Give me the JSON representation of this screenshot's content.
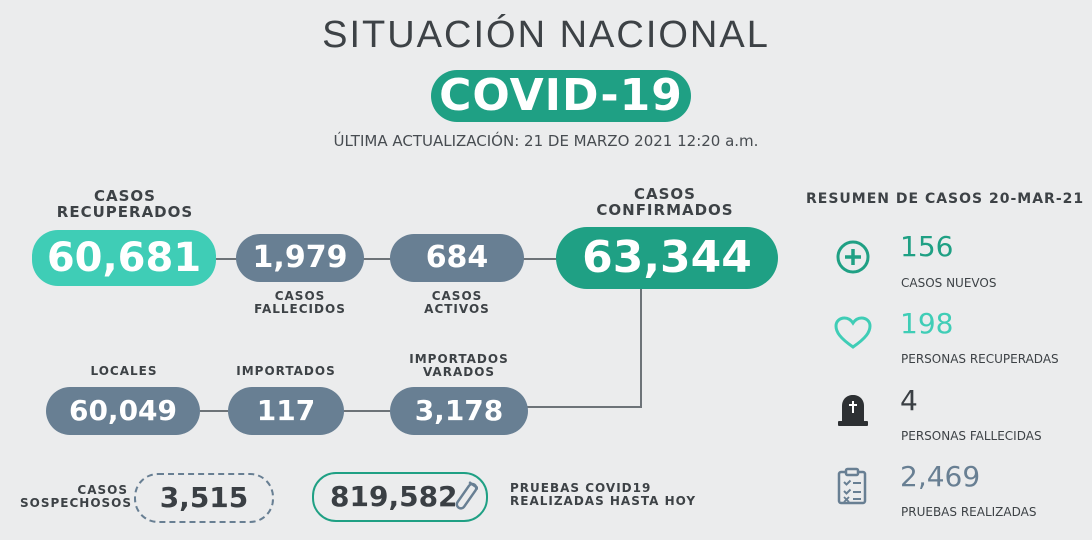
{
  "header": {
    "title": "SITUACIÓN NACIONAL",
    "subtitle": "COVID-19",
    "update": "ÚLTIMA ACTUALIZACIÓN: 21 DE MARZO 2021 12:20 a.m."
  },
  "recuperados": {
    "label_1": "CASOS",
    "label_2": "RECUPERADOS",
    "value": "60,681"
  },
  "fallecidos": {
    "label_1": "CASOS",
    "label_2": "FALLECIDOS",
    "value": "1,979"
  },
  "activos": {
    "label_1": "CASOS",
    "label_2": "ACTIVOS",
    "value": "684"
  },
  "confirmados": {
    "label_1": "CASOS",
    "label_2": "CONFIRMADOS",
    "value": "63,344"
  },
  "locales": {
    "label": "LOCALES",
    "value": "60,049"
  },
  "importados": {
    "label": "IMPORTADOS",
    "value": "117"
  },
  "varados": {
    "label_1": "IMPORTADOS",
    "label_2": "VARADOS",
    "value": "3,178"
  },
  "sospechosos": {
    "label_1": "CASOS",
    "label_2": "SOSPECHOSOS",
    "value": "3,515"
  },
  "pruebas": {
    "value": "819,582",
    "label_1": "PRUEBAS COVID19",
    "label_2": "REALIZADAS HASTA HOY"
  },
  "resumen": {
    "title": "RESUMEN DE CASOS 20-MAR-21",
    "items": [
      {
        "icon": "plus-circle-icon",
        "value": "156",
        "label": "CASOS NUEVOS",
        "color": "#1fa084"
      },
      {
        "icon": "heart-icon",
        "value": "198",
        "label": "PERSONAS RECUPERADAS",
        "color": "#3fcdb6"
      },
      {
        "icon": "tombstone-icon",
        "value": "4",
        "label": "PERSONAS FALLECIDAS",
        "color": "#3a3f44"
      },
      {
        "icon": "clipboard-icon",
        "value": "2,469",
        "label": "PRUEBAS REALIZADAS",
        "color": "#687f93"
      }
    ]
  },
  "colors": {
    "teal": "#1fa084",
    "mint": "#3fcdb6",
    "slate": "#687f93"
  }
}
